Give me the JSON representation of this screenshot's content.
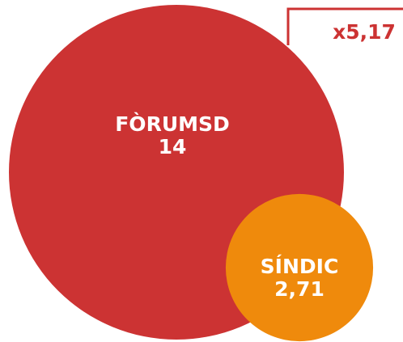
{
  "chart_data": {
    "type": "bubble",
    "categories": [
      "FÒRUMSD",
      "SÍNDIC"
    ],
    "values": [
      14,
      2.71
    ],
    "value_labels": [
      "14",
      "2,71"
    ],
    "colors": [
      "#cc3333",
      "#ef8a0c"
    ],
    "annotation": "x5,17"
  }
}
